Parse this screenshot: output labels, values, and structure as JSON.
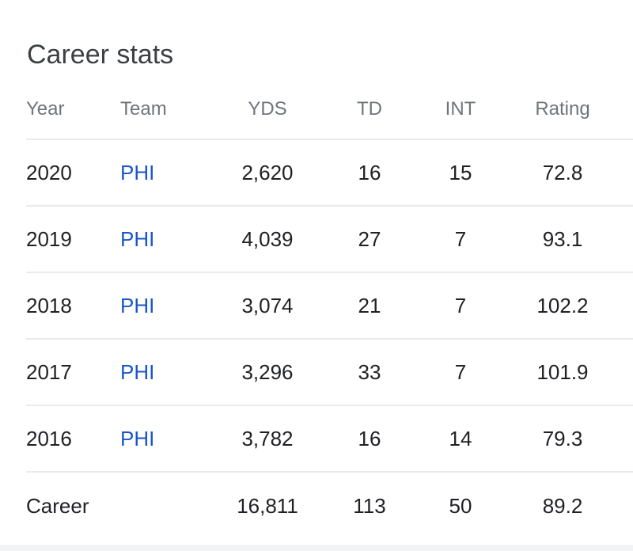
{
  "title": "Career stats",
  "columns": {
    "year": "Year",
    "team": "Team",
    "yds": "YDS",
    "td": "TD",
    "int": "INT",
    "rating": "Rating"
  },
  "rows": [
    {
      "year": "2020",
      "team": "PHI",
      "yds": "2,620",
      "td": "16",
      "int": "15",
      "rating": "72.8"
    },
    {
      "year": "2019",
      "team": "PHI",
      "yds": "4,039",
      "td": "27",
      "int": "7",
      "rating": "93.1"
    },
    {
      "year": "2018",
      "team": "PHI",
      "yds": "3,074",
      "td": "21",
      "int": "7",
      "rating": "102.2"
    },
    {
      "year": "2017",
      "team": "PHI",
      "yds": "3,296",
      "td": "33",
      "int": "7",
      "rating": "101.9"
    },
    {
      "year": "2016",
      "team": "PHI",
      "yds": "3,782",
      "td": "16",
      "int": "14",
      "rating": "79.3"
    }
  ],
  "career": {
    "label": "Career",
    "yds": "16,811",
    "td": "113",
    "int": "50",
    "rating": "89.2"
  },
  "colors": {
    "team_link": "#1a56c8",
    "header_text": "#70757a",
    "divider": "#e8eaed"
  }
}
